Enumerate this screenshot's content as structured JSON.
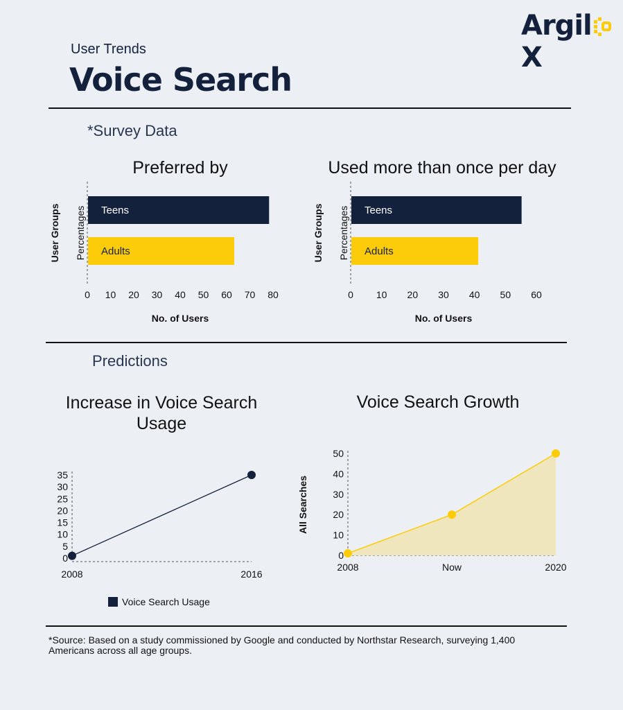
{
  "brand": {
    "logo_text_left": "Argil",
    "logo_text_right": "X"
  },
  "header": {
    "subtitle": "User Trends",
    "title": "Voice Search"
  },
  "sections": {
    "survey": "*Survey Data",
    "predictions": "Predictions"
  },
  "colors": {
    "navy": "#14213d",
    "yellow": "#fccc0a",
    "area_fill": "#efe6bd"
  },
  "chart_data": [
    {
      "type": "bar",
      "orientation": "horizontal",
      "title": "Preferred by",
      "xlabel": "No. of Users",
      "ylabel": "User Groups",
      "y_axis_text": "Percentages",
      "categories": [
        "Teens",
        "Adults"
      ],
      "values": [
        78,
        63
      ],
      "xlim": [
        0,
        80
      ],
      "xticks": [
        0,
        10,
        20,
        30,
        40,
        50,
        60,
        70,
        80
      ],
      "bar_colors": [
        "#14213d",
        "#fccc0a"
      ],
      "label_colors": [
        "#ffffff",
        "#14213d"
      ]
    },
    {
      "type": "bar",
      "orientation": "horizontal",
      "title": "Used more than once per day",
      "xlabel": "No. of Users",
      "ylabel": "User Groups",
      "y_axis_text": "Percentages",
      "categories": [
        "Teens",
        "Adults"
      ],
      "values": [
        55,
        41
      ],
      "xlim": [
        0,
        60
      ],
      "xticks": [
        0,
        10,
        20,
        30,
        40,
        50,
        60
      ],
      "bar_colors": [
        "#14213d",
        "#fccc0a"
      ],
      "label_colors": [
        "#ffffff",
        "#14213d"
      ]
    },
    {
      "type": "line",
      "title": "Increase in Voice Search Usage",
      "categories": [
        "2008",
        "2016"
      ],
      "series": [
        {
          "name": "Voice Search Usage",
          "values": [
            1,
            35
          ]
        }
      ],
      "ylim": [
        0,
        35
      ],
      "yticks": [
        0,
        5,
        10,
        15,
        20,
        25,
        30,
        35
      ],
      "legend": "bottom"
    },
    {
      "type": "area",
      "title": "Voice Search Growth",
      "ylabel": "All Searches",
      "categories": [
        "2008",
        "Now",
        "2020"
      ],
      "series": [
        {
          "values": [
            1,
            20,
            50
          ]
        }
      ],
      "ylim": [
        0,
        50
      ],
      "yticks": [
        0,
        10,
        20,
        30,
        40,
        50
      ]
    }
  ],
  "footer": {
    "source_line1": "*Source: Based on a study commissioned by Google and conducted by Northstar Research, surveying 1,400",
    "source_line2": "Americans across all age groups."
  }
}
